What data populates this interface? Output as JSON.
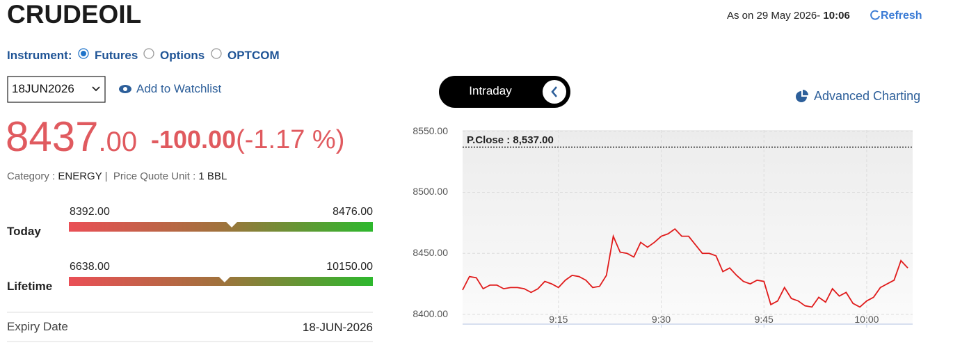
{
  "header": {
    "title": "CRUDEOIL",
    "as_on": "As on 29 May 2026-",
    "time": "10:06",
    "refresh": "Refresh"
  },
  "instrument": {
    "label": "Instrument:",
    "options": [
      "Futures",
      "Options",
      "OPTCOM"
    ],
    "selected": 0
  },
  "expiry_select": "18JUN2026",
  "watchlist": "Add to Watchlist",
  "quote": {
    "ltp": {
      "value": 8437,
      "label": "8437"
    },
    "ltp_decimals": ".00",
    "change": "-100.00",
    "change_pct": "(-1.17 %)"
  },
  "category": {
    "label": "Category :",
    "value": "ENERGY",
    "unit_label": "Price Quote Unit :",
    "unit": "1 BBL"
  },
  "ranges": [
    {
      "label": "Today",
      "low": {
        "value": 8392,
        "label": "8392.00"
      },
      "high": {
        "value": 8476,
        "label": "8476.00"
      }
    },
    {
      "label": "Lifetime",
      "low": {
        "value": 6638,
        "label": "6638.00"
      },
      "high": {
        "value": 10150,
        "label": "10150.00"
      }
    }
  ],
  "expiry": {
    "label": "Expiry Date",
    "value": "18-JUN-2026"
  },
  "toggle": "Intraday",
  "advanced": "Advanced Charting",
  "chart_data": {
    "type": "line",
    "categories": [
      null,
      null,
      null,
      null,
      null,
      null,
      null,
      null,
      null,
      null,
      null,
      null,
      null,
      null,
      "9:15",
      null,
      null,
      null,
      null,
      null,
      null,
      null,
      null,
      null,
      null,
      null,
      null,
      null,
      null,
      "9:30",
      null,
      null,
      null,
      null,
      null,
      null,
      null,
      null,
      null,
      null,
      null,
      null,
      null,
      null,
      "9:45",
      null,
      null,
      null,
      null,
      null,
      null,
      null,
      null,
      null,
      null,
      null,
      null,
      null,
      null,
      "10:00",
      null,
      null,
      null,
      null,
      null,
      null
    ],
    "values": [
      8420,
      8431,
      8430,
      8421,
      8424,
      8424,
      8421,
      8422,
      8422,
      8421,
      8418,
      8421,
      8427,
      8425,
      8422,
      8428,
      8432,
      8431,
      8428,
      8422,
      8423,
      8432,
      8464,
      8451,
      8450,
      8447,
      8459,
      8455,
      8459,
      8464,
      8466,
      8470,
      8464,
      8464,
      8457,
      8450,
      8450,
      8448,
      8435,
      8438,
      8432,
      8427,
      8425,
      8428,
      8427,
      8408,
      8411,
      8422,
      8413,
      8411,
      8407,
      8406,
      8414,
      8410,
      8421,
      8415,
      8418,
      8409,
      8406,
      8411,
      8414,
      8422,
      8425,
      8428,
      8444,
      8438
    ],
    "color": "#e01b1b",
    "ylim": [
      8392,
      8551
    ],
    "yticks": [
      {
        "value": 8400,
        "label": "8400.00"
      },
      {
        "value": 8450,
        "label": "8450.00"
      },
      {
        "value": 8500,
        "label": "8500.00"
      },
      {
        "value": 8550,
        "label": "8550.00"
      }
    ],
    "grid": true,
    "reference": {
      "value": 8537,
      "label": "P.Close : 8,537.00"
    }
  }
}
